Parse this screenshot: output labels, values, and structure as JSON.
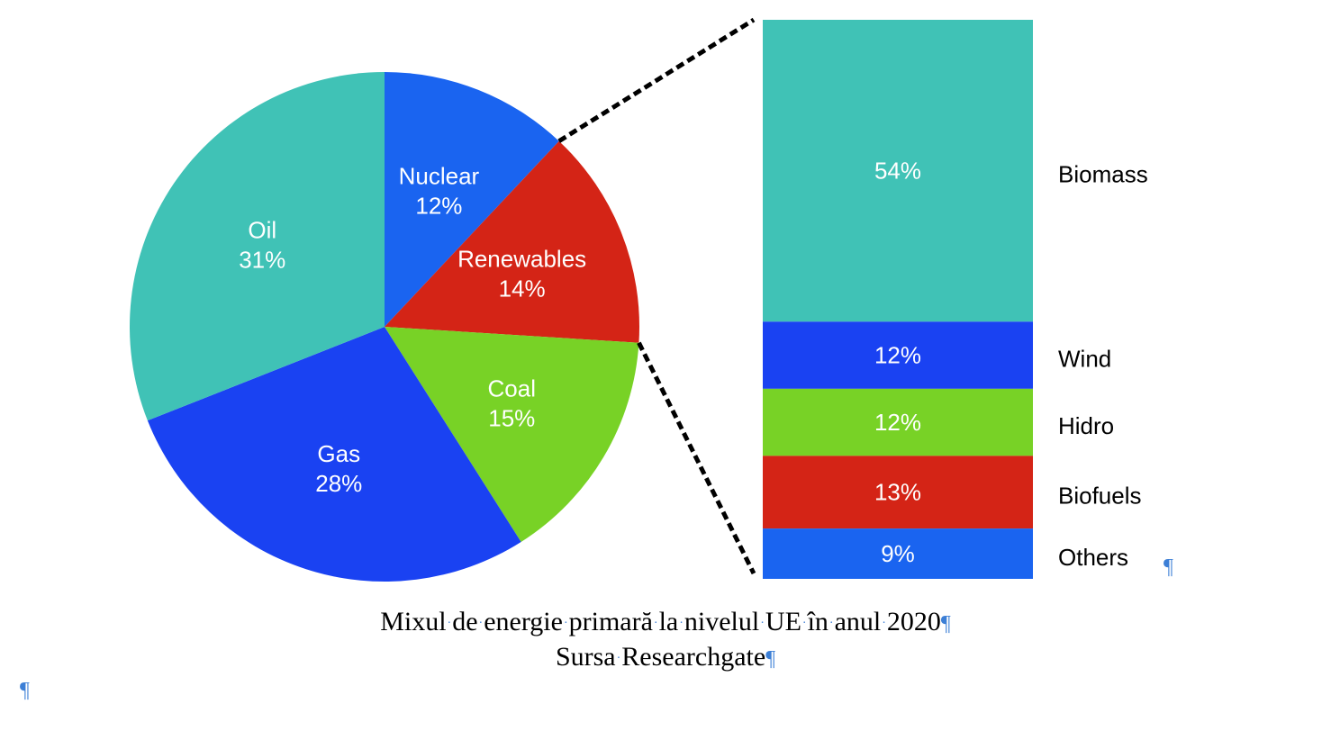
{
  "chart_data": [
    {
      "type": "pie",
      "title": "",
      "slices": [
        {
          "label": "Nuclear",
          "value": 12,
          "display": "12%",
          "color": "#1a64f0"
        },
        {
          "label": "Renewables",
          "value": 14,
          "display": "14%",
          "color": "#d42416"
        },
        {
          "label": "Coal",
          "value": 15,
          "display": "15%",
          "color": "#78d226"
        },
        {
          "label": "Gas",
          "value": 28,
          "display": "28%",
          "color": "#1a42f2"
        },
        {
          "label": "Oil",
          "value": 31,
          "display": "31%",
          "color": "#40c2b6"
        }
      ]
    },
    {
      "type": "bar",
      "subtype": "100%-stacked, breakdown of Renewables",
      "categories": [
        "Biomass",
        "Wind",
        "Hidro",
        "Biofuels",
        "Others"
      ],
      "values": [
        54,
        12,
        12,
        13,
        9
      ],
      "displays": [
        "54%",
        "12%",
        "12%",
        "13%",
        "9%"
      ],
      "colors": [
        "#40c2b6",
        "#1a42f2",
        "#78d226",
        "#d42416",
        "#1a64f0"
      ]
    }
  ],
  "caption": {
    "line1_words": [
      "Mixul",
      "de",
      "energie",
      "primară",
      "la",
      "nivelul",
      "UE",
      "în",
      "anul",
      "2020"
    ],
    "line2_words": [
      "Sursa",
      "Researchgate"
    ],
    "pilcrow": "¶",
    "space_mark": "·"
  }
}
